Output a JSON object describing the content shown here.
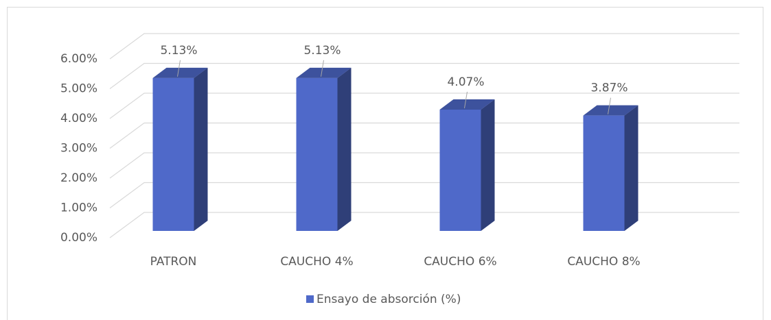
{
  "chart_data": {
    "type": "bar3d",
    "categories": [
      "PATRON",
      "CAUCHO 4%",
      "CAUCHO 6%",
      "CAUCHO 8%"
    ],
    "series": [
      {
        "name": "Ensayo de absorción (%)",
        "color": "#4f69c9",
        "values": [
          5.13,
          5.13,
          4.07,
          3.87
        ],
        "value_labels": [
          "5.13%",
          "5.13%",
          "4.07%",
          "3.87%"
        ]
      }
    ],
    "ylim": [
      0,
      6
    ],
    "yticks": [
      {
        "value": 0,
        "label": "0.00%"
      },
      {
        "value": 1,
        "label": "1.00%"
      },
      {
        "value": 2,
        "label": "2.00%"
      },
      {
        "value": 3,
        "label": "3.00%"
      },
      {
        "value": 4,
        "label": "4.00%"
      },
      {
        "value": 5,
        "label": "5.00%"
      },
      {
        "value": 6,
        "label": "6.00%"
      }
    ],
    "grid": true,
    "legend": "bottom"
  }
}
